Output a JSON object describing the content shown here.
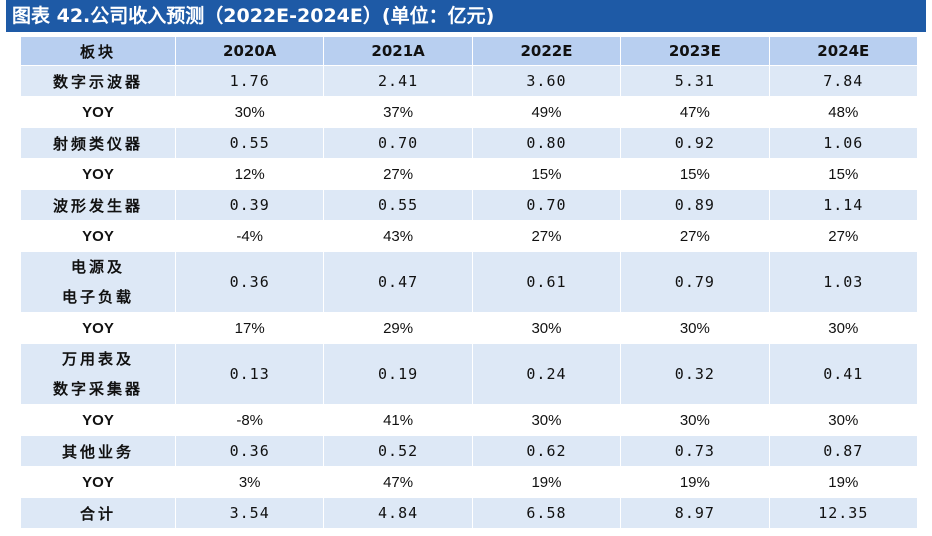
{
  "title": "图表 42.公司收入预测（2022E-2024E）(单位：亿元)",
  "header": {
    "label": "板块",
    "columns": [
      "2020A",
      "2021A",
      "2022E",
      "2023E",
      "2024E"
    ]
  },
  "rows": [
    {
      "type": "main",
      "label": "数字示波器",
      "values": [
        "1.76",
        "2.41",
        "3.60",
        "5.31",
        "7.84"
      ]
    },
    {
      "type": "yoy",
      "label": "YOY",
      "values": [
        "30%",
        "37%",
        "49%",
        "47%",
        "48%"
      ]
    },
    {
      "type": "main",
      "label": "射频类仪器",
      "values": [
        "0.55",
        "0.70",
        "0.80",
        "0.92",
        "1.06"
      ]
    },
    {
      "type": "yoy",
      "label": "YOY",
      "values": [
        "12%",
        "27%",
        "15%",
        "15%",
        "15%"
      ]
    },
    {
      "type": "main",
      "label": "波形发生器",
      "values": [
        "0.39",
        "0.55",
        "0.70",
        "0.89",
        "1.14"
      ]
    },
    {
      "type": "yoy",
      "label": "YOY",
      "values": [
        "-4%",
        "43%",
        "27%",
        "27%",
        "27%"
      ]
    },
    {
      "type": "main",
      "label_lines": [
        "电源及",
        "电子负载"
      ],
      "values": [
        "0.36",
        "0.47",
        "0.61",
        "0.79",
        "1.03"
      ]
    },
    {
      "type": "yoy",
      "label": "YOY",
      "values": [
        "17%",
        "29%",
        "30%",
        "30%",
        "30%"
      ]
    },
    {
      "type": "main",
      "label_lines": [
        "万用表及",
        "数字采集器"
      ],
      "values": [
        "0.13",
        "0.19",
        "0.24",
        "0.32",
        "0.41"
      ]
    },
    {
      "type": "yoy",
      "label": "YOY",
      "values": [
        "-8%",
        "41%",
        "30%",
        "30%",
        "30%"
      ]
    },
    {
      "type": "main",
      "label": "其他业务",
      "values": [
        "0.36",
        "0.52",
        "0.62",
        "0.73",
        "0.87"
      ]
    },
    {
      "type": "yoy",
      "label": "YOY",
      "values": [
        "3%",
        "47%",
        "19%",
        "19%",
        "19%"
      ]
    },
    {
      "type": "main",
      "label": "合计",
      "values": [
        "3.54",
        "4.84",
        "6.58",
        "8.97",
        "12.35"
      ]
    }
  ]
}
